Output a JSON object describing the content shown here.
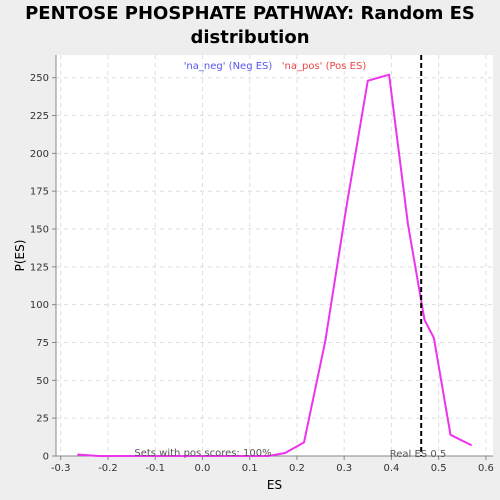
{
  "chart_data": {
    "type": "line",
    "title_line1": "PENTOSE PHOSPHATE PATHWAY: Random ES",
    "title_line2": "distribution",
    "xlabel": "ES",
    "ylabel": "P(ES)",
    "xlim": [
      -0.31,
      0.615
    ],
    "ylim": [
      0,
      265
    ],
    "xticks": [
      -0.3,
      -0.2,
      -0.1,
      0.0,
      0.1,
      0.2,
      0.3,
      0.4,
      0.5,
      0.6
    ],
    "xtick_labels": [
      "-0.3",
      "-0.2",
      "-0.1",
      "0.0",
      "0.1",
      "0.2",
      "0.3",
      "0.4",
      "0.5",
      "0.6"
    ],
    "yticks": [
      0,
      25,
      50,
      75,
      100,
      125,
      150,
      175,
      200,
      225,
      250
    ],
    "ytick_labels": [
      "0",
      "25",
      "50",
      "75",
      "100",
      "125",
      "150",
      "175",
      "200",
      "225",
      "250"
    ],
    "grid": true,
    "legend": [
      {
        "label": "'na_neg' (Neg ES)",
        "color": "#5555ee"
      },
      {
        "label": "'na_pos' (Pos ES)",
        "color": "#ee4444"
      }
    ],
    "series": [
      {
        "color": "#ee33ee",
        "x": [
          -0.265,
          -0.22,
          -0.18,
          -0.13,
          -0.09,
          -0.04,
          0.0,
          0.04,
          0.09,
          0.14,
          0.175,
          0.215,
          0.26,
          0.305,
          0.35,
          0.395,
          0.435,
          0.47,
          0.49,
          0.525,
          0.57
        ],
        "y": [
          1,
          0,
          0,
          0,
          0,
          0,
          0,
          0,
          0,
          0,
          2,
          9,
          76,
          165,
          248,
          252,
          153,
          90,
          78,
          14,
          7
        ]
      }
    ],
    "real_es": 0.463,
    "real_es_label": "Real ES 0.5",
    "annotation": "Sets with pos scores: 100%",
    "colors": {
      "real_es_line": "#000000",
      "grid": "#dddddd",
      "plot_bg": "#ffffff"
    }
  }
}
